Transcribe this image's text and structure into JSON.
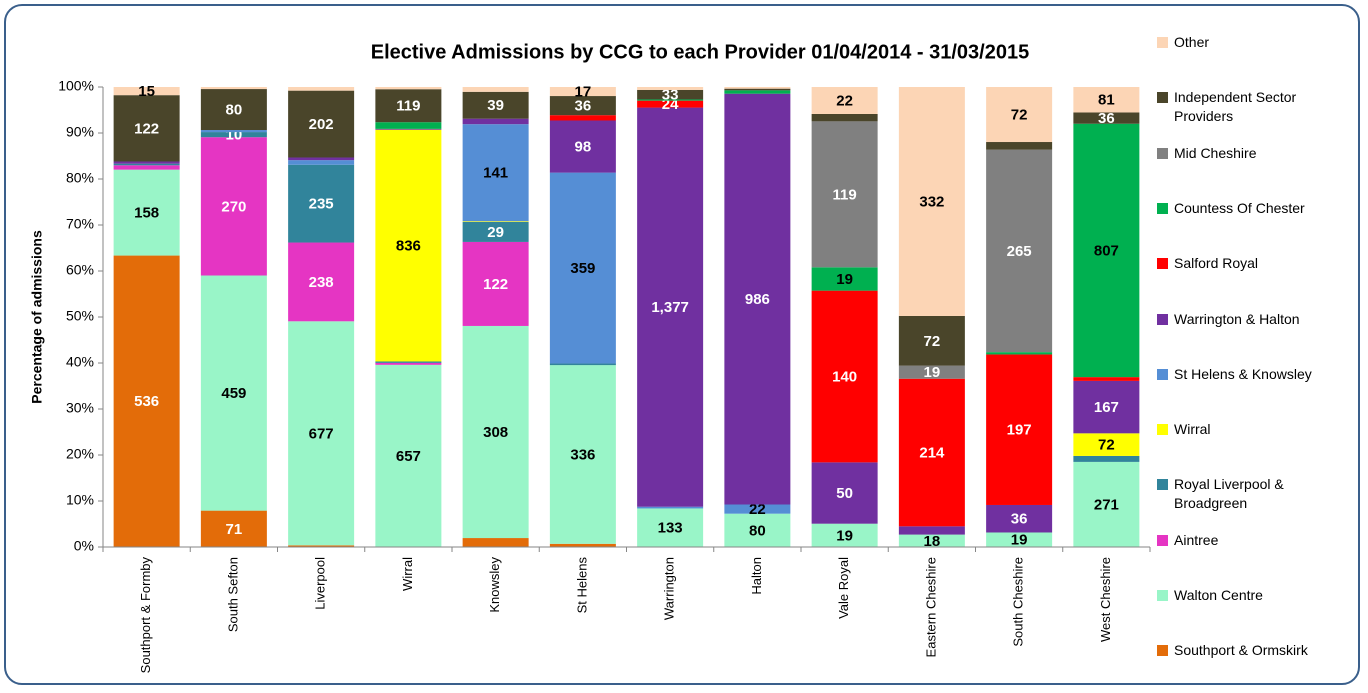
{
  "chart_data": {
    "type": "bar",
    "stacking": "percent",
    "title": "Elective Admissions by CCG to each Provider 01/04/2014 - 31/03/2015",
    "y_label": "Percentage of admissions",
    "categories": [
      "Southport & Formby",
      "South Sefton",
      "Liverpool",
      "Wirral",
      "Knowsley",
      "St Helens",
      "Warrington",
      "Halton",
      "Vale Royal",
      "Eastern Cheshire",
      "South Cheshire",
      "West Cheshire"
    ],
    "ylim": [
      0,
      100
    ],
    "yticks": [
      {
        "value": 0,
        "label": "0%"
      },
      {
        "value": 10,
        "label": "10%"
      },
      {
        "value": 20,
        "label": "20%"
      },
      {
        "value": 30,
        "label": "30%"
      },
      {
        "value": 40,
        "label": "40%"
      },
      {
        "value": 50,
        "label": "50%"
      },
      {
        "value": 60,
        "label": "60%"
      },
      {
        "value": 70,
        "label": "70%"
      },
      {
        "value": 80,
        "label": "80%"
      },
      {
        "value": 90,
        "label": "90%"
      },
      {
        "value": 100,
        "label": "100%"
      }
    ],
    "legend": "right",
    "series": [
      {
        "name": "Southport & Ormskirk",
        "color": "#E36C09",
        "label_color": "#ffffff",
        "values": [
          536,
          71,
          5,
          0,
          13,
          6,
          0,
          0,
          0,
          0,
          0,
          0
        ],
        "value_labels": [
          "536",
          "71",
          null,
          null,
          null,
          null,
          null,
          null,
          null,
          null,
          null,
          null
        ]
      },
      {
        "name": "Walton Centre",
        "color": "#99F5C8",
        "label_color": "#000000",
        "values": [
          158,
          459,
          677,
          657,
          308,
          336,
          133,
          80,
          19,
          18,
          19,
          271
        ],
        "value_labels": [
          "158",
          "459",
          "677",
          "657",
          "308",
          "336",
          "133",
          "80",
          "19",
          "18",
          "19",
          "271"
        ]
      },
      {
        "name": "Aintree",
        "color": "#E535C3",
        "label_color": "#ffffff",
        "values": [
          8,
          270,
          238,
          7,
          122,
          0,
          0,
          0,
          0,
          0,
          0,
          0
        ],
        "value_labels": [
          null,
          "270",
          "238",
          null,
          "122",
          null,
          null,
          null,
          null,
          null,
          null,
          null
        ]
      },
      {
        "name": "Royal Liverpool & Broadgreen",
        "color": "#31849B",
        "label_color": "#ffffff",
        "values": [
          3,
          10,
          235,
          5,
          29,
          3,
          0,
          0,
          0,
          0,
          0,
          19
        ],
        "value_labels": [
          null,
          "10",
          "235",
          null,
          "29",
          null,
          null,
          null,
          null,
          null,
          null,
          null
        ]
      },
      {
        "name": "Wirral",
        "color": "#FFFF00",
        "label_color": "#000000",
        "values": [
          0,
          0,
          0,
          836,
          1,
          0,
          0,
          0,
          0,
          0,
          0,
          72
        ],
        "value_labels": [
          null,
          null,
          null,
          "836",
          null,
          null,
          null,
          null,
          null,
          null,
          null,
          "72"
        ]
      },
      {
        "name": "St Helens & Knowsley",
        "color": "#558ED5",
        "label_color": "#000000",
        "values": [
          0,
          4,
          14,
          0,
          141,
          359,
          6,
          22,
          0,
          0,
          0,
          0
        ],
        "value_labels": [
          null,
          null,
          null,
          null,
          "141",
          "359",
          null,
          "22",
          null,
          null,
          null,
          null
        ]
      },
      {
        "name": "Warrington & Halton",
        "color": "#7030A0",
        "label_color": "#ffffff",
        "values": [
          4,
          0,
          8,
          3,
          8,
          98,
          1377,
          986,
          50,
          12,
          36,
          167
        ],
        "value_labels": [
          null,
          null,
          null,
          null,
          null,
          "98",
          "1,377",
          "986",
          "50",
          null,
          "36",
          "167"
        ]
      },
      {
        "name": "Salford Royal",
        "color": "#FF0000",
        "label_color": "#ffffff",
        "values": [
          0,
          0,
          0,
          0,
          0,
          10,
          24,
          0,
          140,
          214,
          197,
          12
        ],
        "value_labels": [
          null,
          null,
          null,
          null,
          null,
          null,
          "24",
          null,
          "140",
          "214",
          "197",
          null
        ]
      },
      {
        "name": "Countess Of Chester",
        "color": "#00B050",
        "label_color": "#000000",
        "values": [
          0,
          0,
          0,
          24,
          0,
          0,
          4,
          8,
          19,
          0,
          3,
          807
        ],
        "value_labels": [
          null,
          null,
          null,
          null,
          null,
          null,
          null,
          null,
          "19",
          null,
          null,
          "807"
        ]
      },
      {
        "name": "Mid Cheshire",
        "color": "#808080",
        "label_color": "#ffffff",
        "values": [
          0,
          0,
          0,
          0,
          0,
          0,
          0,
          0,
          119,
          19,
          265,
          0
        ],
        "value_labels": [
          null,
          null,
          null,
          null,
          null,
          null,
          null,
          null,
          "119",
          "19",
          "265",
          null
        ]
      },
      {
        "name": "Independent Sector Providers",
        "color": "#4A452A",
        "label_color": "#ffffff",
        "values": [
          122,
          80,
          202,
          119,
          39,
          36,
          33,
          4,
          6,
          72,
          10,
          36
        ],
        "value_labels": [
          "122",
          "80",
          "202",
          "119",
          "39",
          "36",
          "33",
          null,
          null,
          "72",
          null,
          "36"
        ]
      },
      {
        "name": "Other",
        "color": "#FCD5B5",
        "label_color": "#000000",
        "values": [
          15,
          4,
          11,
          8,
          7,
          17,
          10,
          4,
          22,
          332,
          72,
          81
        ],
        "value_labels": [
          "15",
          null,
          null,
          null,
          null,
          "17",
          null,
          null,
          "22",
          "332",
          "72",
          "81"
        ]
      }
    ]
  }
}
